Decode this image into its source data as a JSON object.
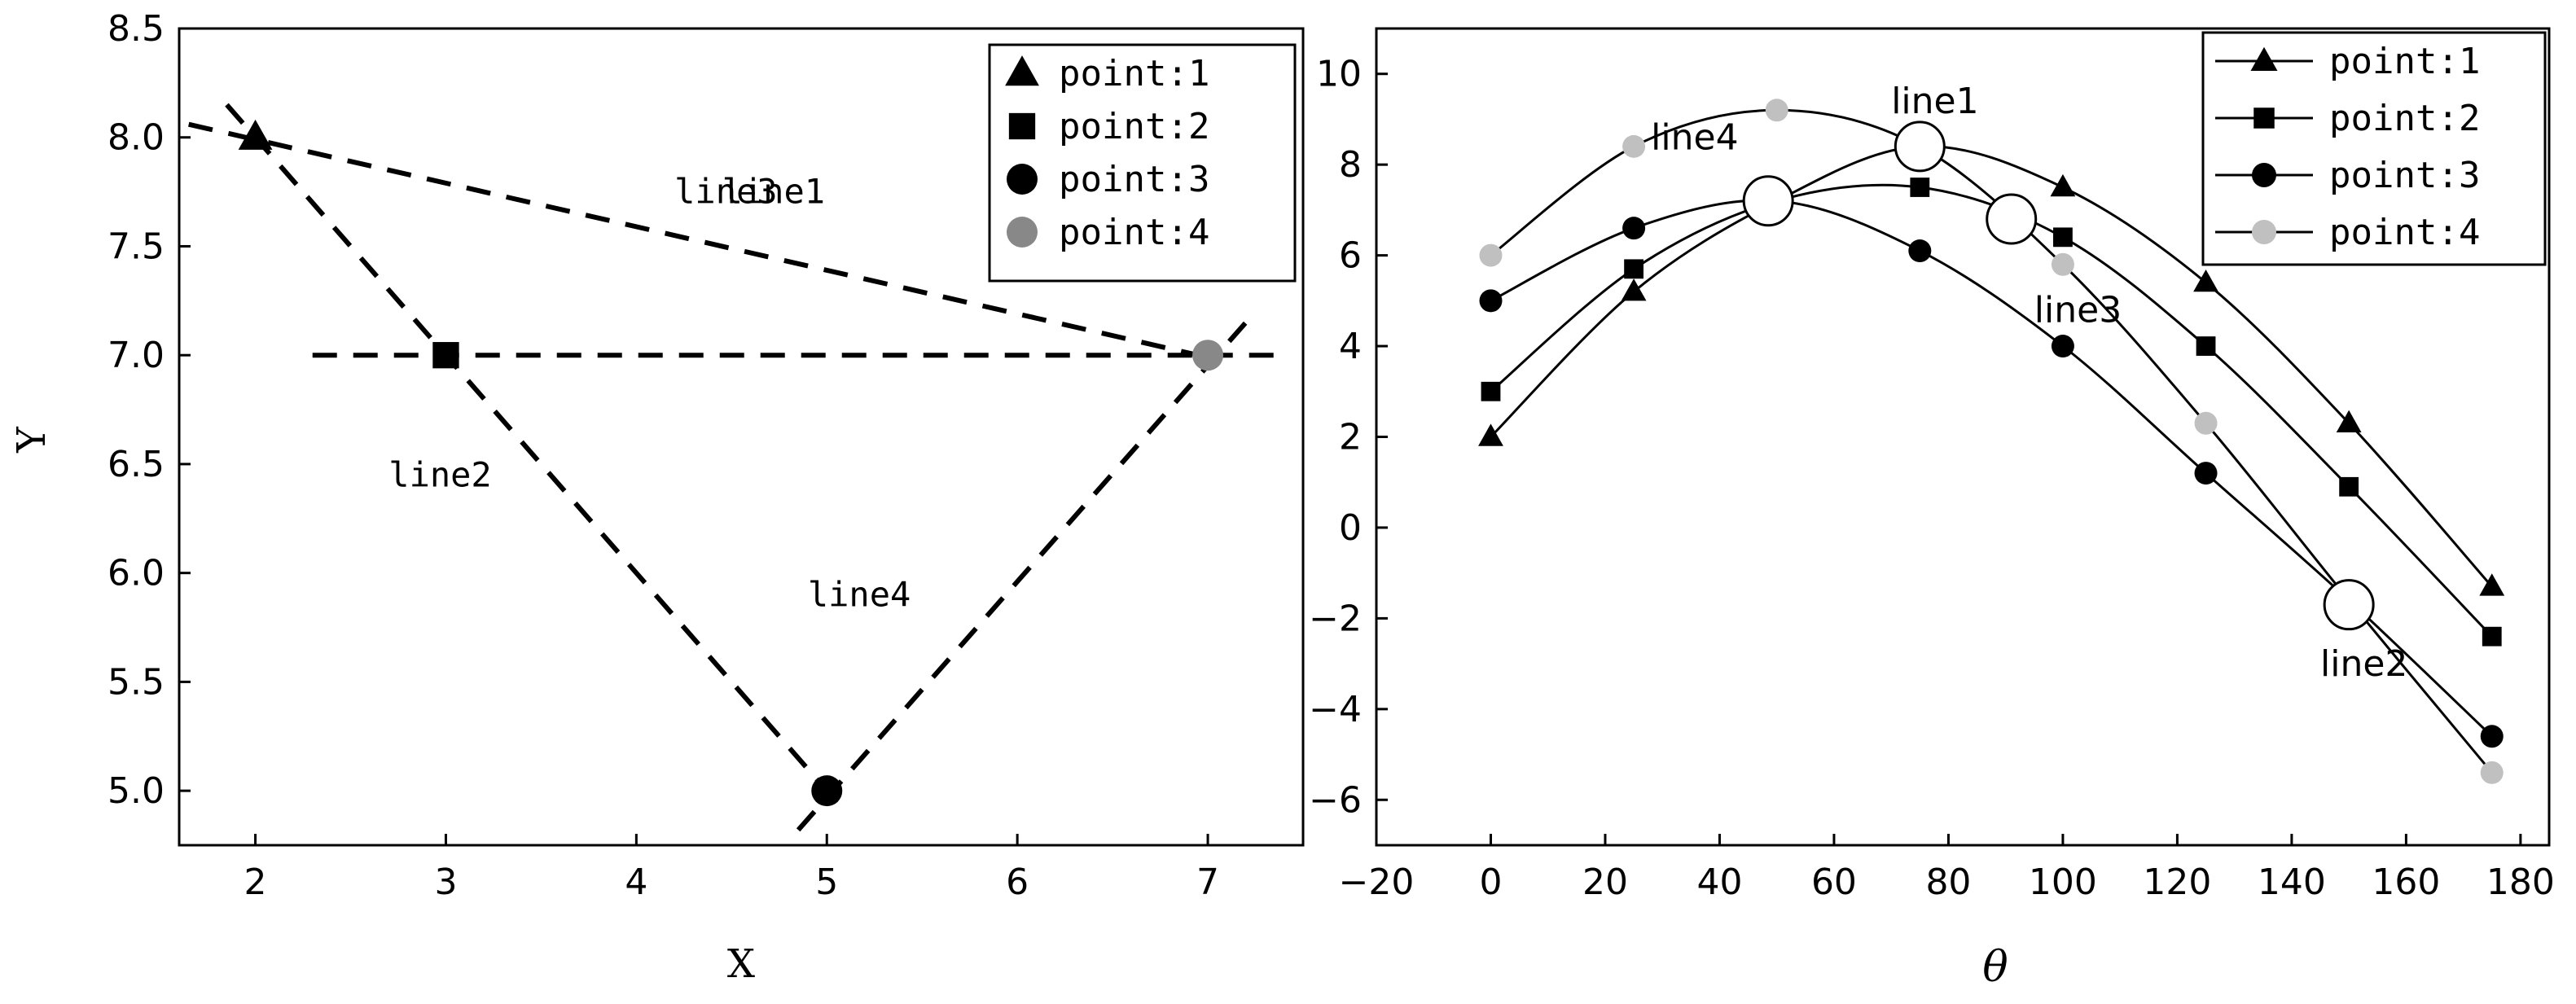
{
  "chart_data": [
    {
      "type": "scatter",
      "title": "",
      "xlabel": "X",
      "ylabel": "Y",
      "xlim": [
        1.6,
        7.5
      ],
      "ylim": [
        4.75,
        8.5
      ],
      "xticks": [
        2,
        3,
        4,
        5,
        6,
        7
      ],
      "yticks": [
        5.0,
        5.5,
        6.0,
        6.5,
        7.0,
        7.5,
        8.0,
        8.5
      ],
      "xtick_labels": [
        "2",
        "3",
        "4",
        "5",
        "6",
        "7"
      ],
      "ytick_labels": [
        "5.0",
        "5.5",
        "6.0",
        "6.5",
        "7.0",
        "7.5",
        "8.0",
        "8.5"
      ],
      "points": [
        {
          "name": "point:1",
          "x": 2,
          "y": 8.0,
          "marker": "triangle",
          "color": "#000000"
        },
        {
          "name": "point:2",
          "x": 3,
          "y": 7.0,
          "marker": "square",
          "color": "#000000"
        },
        {
          "name": "point:3",
          "x": 5,
          "y": 5.0,
          "marker": "circle",
          "color": "#000000"
        },
        {
          "name": "point:4",
          "x": 7,
          "y": 7.0,
          "marker": "circle",
          "color": "#888888"
        }
      ],
      "lines": [
        {
          "name": "line1",
          "from": [
            1.65,
            8.06
          ],
          "to": [
            7.05,
            6.98
          ],
          "label_at": [
            4.45,
            7.75
          ]
        },
        {
          "name": "line2",
          "from": [
            1.85,
            8.15
          ],
          "to": [
            5.0,
            5.0
          ],
          "label_at": [
            2.7,
            6.45
          ]
        },
        {
          "name": "line3",
          "from": [
            2.3,
            7.0
          ],
          "to": [
            7.4,
            7.0
          ],
          "label_at": [
            4.2,
            7.75
          ]
        },
        {
          "name": "line4",
          "from": [
            4.85,
            4.82
          ],
          "to": [
            7.25,
            7.2
          ],
          "label_at": [
            4.9,
            5.9
          ]
        }
      ],
      "line_labels": {
        "line1": "line1",
        "line2": "line2",
        "line3": "line3",
        "line4": "line4"
      },
      "legend": {
        "position": "top-right",
        "entries": [
          "point:1",
          "point:2",
          "point:3",
          "point:4"
        ]
      }
    },
    {
      "type": "line",
      "title": "",
      "xlabel": "θ",
      "ylabel": "",
      "xlim": [
        -20,
        185
      ],
      "ylim": [
        -7,
        11
      ],
      "xticks": [
        -20,
        0,
        20,
        40,
        60,
        80,
        100,
        120,
        140,
        160,
        180
      ],
      "yticks": [
        -6,
        -4,
        -2,
        0,
        2,
        4,
        6,
        8,
        10
      ],
      "xtick_labels": [
        "−20",
        "0",
        "20",
        "40",
        "60",
        "80",
        "100",
        "120",
        "140",
        "160",
        "180"
      ],
      "ytick_labels": [
        "−6",
        "−4",
        "−2",
        "0",
        "2",
        "4",
        "6",
        "8",
        "10"
      ],
      "x": [
        0,
        25,
        50,
        75,
        100,
        125,
        150,
        175
      ],
      "series": [
        {
          "name": "point:1",
          "marker": "triangle",
          "color": "#000000",
          "values": [
            2.0,
            5.2,
            7.2,
            8.4,
            7.5,
            5.4,
            2.3,
            -1.3
          ]
        },
        {
          "name": "point:2",
          "marker": "square",
          "color": "#000000",
          "values": [
            3.0,
            5.7,
            7.2,
            7.5,
            6.4,
            4.0,
            0.9,
            -2.4
          ]
        },
        {
          "name": "point:3",
          "marker": "circle",
          "color": "#000000",
          "values": [
            5.0,
            6.6,
            7.2,
            6.1,
            4.0,
            1.2,
            -1.6,
            -4.6
          ]
        },
        {
          "name": "point:4",
          "marker": "circle",
          "color": "#c0c0c0",
          "values": [
            6.0,
            8.4,
            9.2,
            8.4,
            5.8,
            2.3,
            -1.6,
            -5.4
          ]
        }
      ],
      "intersections": [
        {
          "name": "line1",
          "x": 75,
          "y": 8.4,
          "label_at": [
            70,
            9.4
          ]
        },
        {
          "name": "line4",
          "x": 48.5,
          "y": 7.2,
          "label_at": [
            28,
            8.6
          ]
        },
        {
          "name": "line3",
          "x": 91,
          "y": 6.8,
          "label_at": [
            95,
            4.8
          ]
        },
        {
          "name": "line2",
          "x": 150,
          "y": -1.7,
          "label_at": [
            145,
            -3.0
          ]
        }
      ],
      "intersection_labels": {
        "line1": "line1",
        "line2": "line2",
        "line3": "line3",
        "line4": "line4"
      },
      "legend": {
        "position": "top-right",
        "entries": [
          "point:1",
          "point:2",
          "point:3",
          "point:4"
        ]
      }
    }
  ]
}
